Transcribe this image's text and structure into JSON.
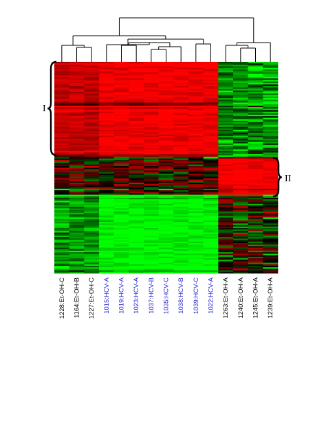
{
  "chart_data": {
    "type": "heatmap",
    "title": "",
    "columns": [
      {
        "label": "1228:Et-OH-C",
        "color": "#000000"
      },
      {
        "label": "1164:Et-OH-B",
        "color": "#000000"
      },
      {
        "label": "1227:Et-OH-C",
        "color": "#000000"
      },
      {
        "label": "1015:HCV-A",
        "color": "#2b2bd0"
      },
      {
        "label": "1019:HCV-A",
        "color": "#2b2bd0"
      },
      {
        "label": "1023:HCV-A",
        "color": "#2b2bd0"
      },
      {
        "label": "1037:HCV-B",
        "color": "#2b2bd0"
      },
      {
        "label": "1035:HCV-C",
        "color": "#2b2bd0"
      },
      {
        "label": "1038:HCV-B",
        "color": "#2b2bd0"
      },
      {
        "label": "1039:HCV-C",
        "color": "#2b2bd0"
      },
      {
        "label": "1022:HCV-A",
        "color": "#2b2bd0"
      },
      {
        "label": "1263:Et-OH-A",
        "color": "#000000"
      },
      {
        "label": "1240:Et-OH-A",
        "color": "#000000"
      },
      {
        "label": "1245:Et-OH-A",
        "color": "#000000"
      },
      {
        "label": "1239:Et-OH-A",
        "color": "#000000"
      }
    ],
    "groups": [
      "Et-OH",
      "HCV"
    ],
    "clusters": [
      {
        "label": "I",
        "side": "left"
      },
      {
        "label": "II",
        "side": "right"
      }
    ],
    "block_pattern": {
      "left_columns": 11,
      "right_columns": 4,
      "top_block": {
        "left": "red",
        "right": "green"
      },
      "middle_block": {
        "left": "mixed-dark",
        "right": "red"
      },
      "bottom_block": {
        "left": "green",
        "right": "mixed-dark"
      }
    },
    "colors": {
      "high": "#ff0000",
      "low": "#00ff00",
      "neutral": "#000000",
      "label_hcv": "#2b2bd0",
      "label_etoh": "#000000"
    }
  }
}
